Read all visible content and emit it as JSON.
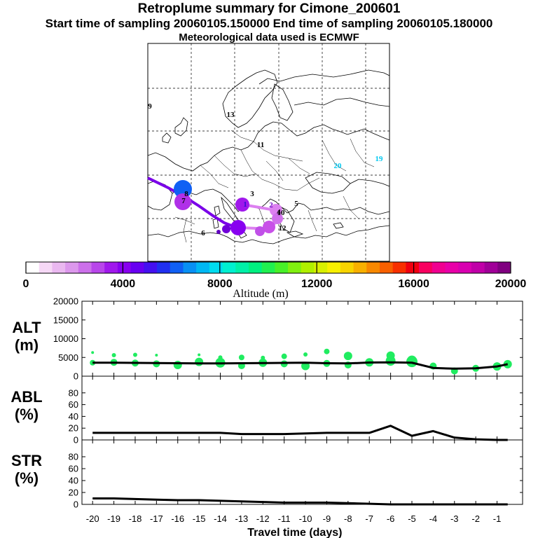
{
  "header": {
    "title": "Retroplume summary for Cimone_200601",
    "sampling": "Start time of sampling 20060105.150000     End time of sampling 20060105.180000",
    "meteo": "Meteorological data used is ECMWF"
  },
  "colorbar": {
    "colors": [
      "#fff",
      "#f6d8f6",
      "#eab8f0",
      "#dc98ec",
      "#cc70ea",
      "#b846ea",
      "#a018ec",
      "#8800f0",
      "#6800f2",
      "#4410f0",
      "#2030f0",
      "#1060f4",
      "#0890f4",
      "#00b8f4",
      "#00dcf0",
      "#00f0d0",
      "#00f0a8",
      "#00f080",
      "#20f050",
      "#48f028",
      "#80f010",
      "#b0f000",
      "#d8f000",
      "#f8f000",
      "#f8d400",
      "#f8b000",
      "#f88800",
      "#f86000",
      "#f83000",
      "#f00010",
      "#f80060",
      "#f00090",
      "#e800a8",
      "#d800b0",
      "#c000a8",
      "#a00098",
      "#800080"
    ],
    "ticks": [
      "0",
      "4000",
      "8000",
      "12000",
      "16000",
      "20000"
    ],
    "label": "Altitude (m)"
  },
  "map": {
    "labels": [
      "1",
      "2",
      "3",
      "4",
      "5",
      "6",
      "7",
      "8",
      "9",
      "10",
      "11",
      "12",
      "13",
      "19",
      "20"
    ],
    "label_colors": [
      "#3010d0",
      "#7000c8",
      "#000000",
      "#000000",
      "#000000",
      "#000000",
      "#000000",
      "#000000",
      "#000000",
      "#000000",
      "#000000",
      "#000000",
      "#000000",
      "#00c8f0",
      "#00c8f0"
    ]
  },
  "chart_data": [
    {
      "type": "line",
      "panel": "ALT",
      "ylabel_line1": "ALT",
      "ylabel_line2": "(m)",
      "ylim": [
        0,
        20000
      ],
      "yticks": [
        "0",
        "5000",
        "10000",
        "15000",
        "20000"
      ],
      "x": [
        -20,
        -19,
        -18,
        -17,
        -16,
        -15,
        -14,
        -13,
        -12,
        -11,
        -10,
        -9,
        -8,
        -7,
        -6,
        -5,
        -4,
        -3,
        -2,
        -1,
        -0.5
      ],
      "values": [
        3600,
        3600,
        3550,
        3500,
        3450,
        3400,
        3400,
        3450,
        3500,
        3550,
        3600,
        3450,
        3400,
        3650,
        3700,
        3600,
        2200,
        2000,
        2100,
        2600,
        3200
      ],
      "scatter_x": [
        -20,
        -20,
        -19,
        -19,
        -18,
        -18,
        -17,
        -17,
        -16,
        -15,
        -15,
        -14,
        -14,
        -13,
        -13,
        -12,
        -12,
        -11,
        -11,
        -10,
        -10,
        -9,
        -9,
        -8,
        -8,
        -7,
        -6,
        -6,
        -5,
        -5,
        -4,
        -3,
        -2,
        -1,
        -0.5
      ],
      "scatter_y": [
        3600,
        6300,
        3700,
        5600,
        3500,
        5700,
        3300,
        5600,
        3000,
        3800,
        5700,
        3600,
        5000,
        2800,
        5000,
        3600,
        4900,
        3300,
        5300,
        2700,
        5800,
        3400,
        6600,
        3000,
        5400,
        3700,
        4100,
        5500,
        3900,
        4200,
        2700,
        1400,
        2100,
        2600,
        3200
      ],
      "scatter_size": [
        4,
        2,
        5,
        3,
        5,
        3,
        5,
        2,
        6,
        6,
        2,
        7,
        3,
        5,
        4,
        6,
        3,
        5,
        4,
        6,
        3,
        5,
        4,
        5,
        6,
        6,
        7,
        6,
        8,
        7,
        5,
        5,
        5,
        6,
        6
      ]
    },
    {
      "type": "line",
      "panel": "ABL",
      "ylabel_line1": "ABL",
      "ylabel_line2": "(%)",
      "ylim": [
        0,
        100
      ],
      "yticks": [
        "0",
        "20",
        "40",
        "60",
        "80"
      ],
      "x": [
        -20,
        -19,
        -18,
        -17,
        -16,
        -15,
        -14,
        -13,
        -12,
        -11,
        -10,
        -9,
        -8,
        -7,
        -6,
        -5,
        -4,
        -3,
        -2,
        -1,
        -0.5
      ],
      "values": [
        12,
        12,
        12,
        12,
        12,
        12,
        12,
        10,
        10,
        10,
        11,
        12,
        12,
        12,
        24,
        7,
        15,
        4,
        1,
        0,
        0
      ]
    },
    {
      "type": "line",
      "panel": "STR",
      "ylabel_line1": "STR",
      "ylabel_line2": "(%)",
      "ylim": [
        0,
        100
      ],
      "yticks": [
        "0",
        "20",
        "40",
        "60",
        "80"
      ],
      "x": [
        -20,
        -19,
        -18,
        -17,
        -16,
        -15,
        -14,
        -13,
        -12,
        -11,
        -10,
        -9,
        -8,
        -7,
        -6,
        -5,
        -4,
        -3,
        -2,
        -1,
        -0.5
      ],
      "values": [
        10,
        10,
        9,
        8,
        7,
        7,
        6,
        5,
        4,
        3,
        3,
        3,
        2,
        1,
        0,
        0,
        0,
        0,
        0,
        0,
        0
      ],
      "xticks": [
        "-20",
        "-19",
        "-18",
        "-17",
        "-16",
        "-15",
        "-14",
        "-13",
        "-12",
        "-11",
        "-10",
        "-9",
        "-8",
        "-7",
        "-6",
        "-5",
        "-4",
        "-3",
        "-2",
        "-1"
      ],
      "xlabel": "Travel time (days)"
    }
  ]
}
